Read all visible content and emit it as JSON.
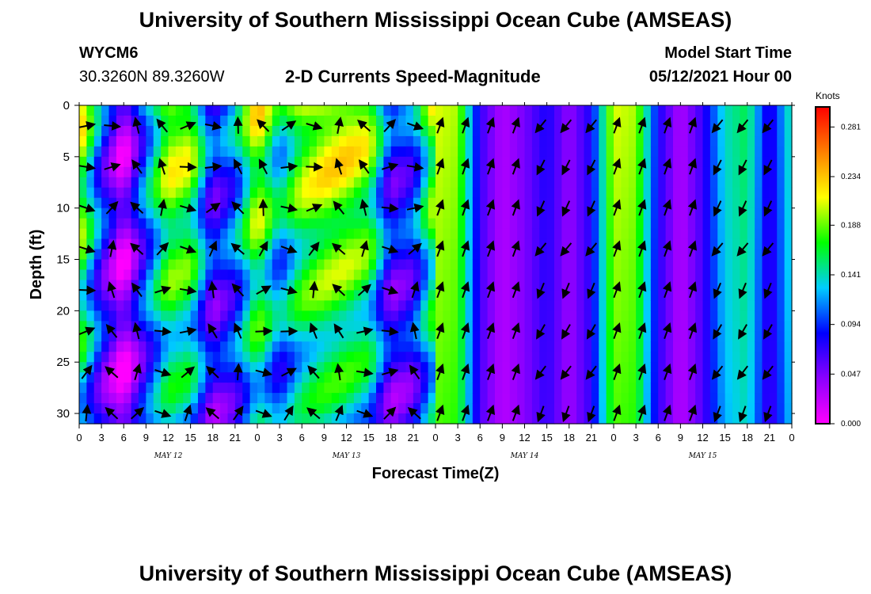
{
  "header": {
    "title_top": "University of Southern Mississippi Ocean Cube (AMSEAS)",
    "title_bottom": "University of Southern Mississippi Ocean Cube (AMSEAS)",
    "station": "WYCM6",
    "coords": "30.3260N  89.3260W",
    "subtitle": "2-D Currents Speed-Magnitude",
    "model_start_label": "Model Start Time",
    "model_start_value": "05/12/2021 Hour 00"
  },
  "chart_data": {
    "type": "heatmap",
    "title": "2-D Currents Speed-Magnitude",
    "xlabel": "Forecast Time(Z)",
    "ylabel": "Depth (ft)",
    "x_range_hours": [
      0,
      96
    ],
    "y_range_ft": [
      0,
      31
    ],
    "x_ticks": [
      "0",
      "3",
      "6",
      "9",
      "12",
      "15",
      "18",
      "21",
      "0",
      "3",
      "6",
      "9",
      "12",
      "15",
      "18",
      "21",
      "0",
      "3",
      "6",
      "9",
      "12",
      "15",
      "18",
      "21",
      "0",
      "3",
      "6",
      "9",
      "12",
      "15",
      "18",
      "21",
      "0"
    ],
    "day_labels": [
      "MAY 12",
      "MAY 13",
      "MAY 14",
      "MAY 15"
    ],
    "y_ticks": [
      0,
      5,
      10,
      15,
      20,
      25,
      30
    ],
    "colorbar": {
      "label": "Knots",
      "ticks": [
        "0.281",
        "0.234",
        "0.188",
        "0.141",
        "0.094",
        "0.047",
        "0.000"
      ],
      "range": [
        0.0,
        0.3
      ],
      "colors": [
        "#ff00ff",
        "#8b00ff",
        "#0000ff",
        "#00ccff",
        "#00ff00",
        "#ffff00",
        "#ff8000",
        "#ff0000"
      ]
    },
    "surface_speed_profile": {
      "hours": [
        0,
        3,
        6,
        9,
        12,
        15,
        18,
        21,
        24,
        27,
        30,
        33,
        36,
        39,
        42,
        45,
        48,
        51,
        54,
        57,
        60,
        63,
        66,
        69,
        72,
        75,
        78,
        81,
        84,
        87,
        90,
        93,
        96
      ],
      "knots": [
        0.22,
        0.1,
        0.02,
        0.12,
        0.21,
        0.2,
        0.08,
        0.12,
        0.22,
        0.14,
        0.2,
        0.22,
        0.22,
        0.2,
        0.08,
        0.1,
        0.21,
        0.2,
        0.07,
        0.03,
        0.05,
        0.08,
        0.04,
        0.08,
        0.21,
        0.2,
        0.08,
        0.03,
        0.07,
        0.14,
        0.16,
        0.07,
        0.15
      ]
    }
  }
}
